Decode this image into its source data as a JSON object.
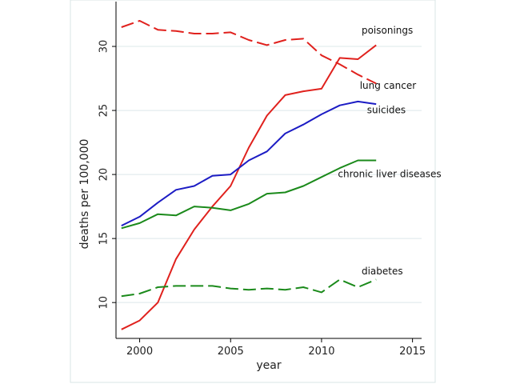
{
  "chart_data": {
    "type": "line",
    "title": "",
    "xlabel": "year",
    "ylabel": "deaths per 100,000",
    "xlim": [
      1998.7,
      2015.5
    ],
    "ylim": [
      7.2,
      33.5
    ],
    "xticks": [
      2000,
      2005,
      2010,
      2015
    ],
    "yticks": [
      10,
      15,
      20,
      25,
      30
    ],
    "grid": true,
    "legend": "none",
    "series": [
      {
        "name": "poisonings",
        "color": "#e0211d",
        "dash": "solid",
        "x": [
          1999,
          2000,
          2001,
          2002,
          2003,
          2004,
          2005,
          2006,
          2007,
          2008,
          2009,
          2010,
          2011,
          2012,
          2013
        ],
        "y": [
          7.9,
          8.6,
          10.0,
          13.4,
          15.7,
          17.5,
          19.1,
          22.1,
          24.6,
          26.2,
          26.5,
          26.7,
          29.1,
          29.0,
          30.1
        ]
      },
      {
        "name": "lung cancer",
        "color": "#e0211d",
        "dash": "dashed",
        "x": [
          1999,
          2000,
          2001,
          2002,
          2003,
          2004,
          2005,
          2006,
          2007,
          2008,
          2009,
          2010,
          2011,
          2012,
          2013
        ],
        "y": [
          31.5,
          32.0,
          31.3,
          31.2,
          31.0,
          31.0,
          31.1,
          30.5,
          30.1,
          30.5,
          30.6,
          29.3,
          28.6,
          27.8,
          27.1
        ]
      },
      {
        "name": "suicides",
        "color": "#1c1cc4",
        "dash": "solid",
        "x": [
          1999,
          2000,
          2001,
          2002,
          2003,
          2004,
          2005,
          2006,
          2007,
          2008,
          2009,
          2010,
          2011,
          2012,
          2013
        ],
        "y": [
          16.0,
          16.7,
          17.8,
          18.8,
          19.1,
          19.9,
          20.0,
          21.1,
          21.8,
          23.2,
          23.9,
          24.7,
          25.4,
          25.7,
          25.5
        ]
      },
      {
        "name": "chronic liver diseases",
        "color": "#1b8a1b",
        "dash": "solid",
        "x": [
          1999,
          2000,
          2001,
          2002,
          2003,
          2004,
          2005,
          2006,
          2007,
          2008,
          2009,
          2010,
          2011,
          2012,
          2013
        ],
        "y": [
          15.8,
          16.2,
          16.9,
          16.8,
          17.5,
          17.4,
          17.2,
          17.7,
          18.5,
          18.6,
          19.1,
          19.8,
          20.5,
          21.1,
          21.1
        ]
      },
      {
        "name": "diabetes",
        "color": "#1b8a1b",
        "dash": "dashed",
        "x": [
          1999,
          2000,
          2001,
          2002,
          2003,
          2004,
          2005,
          2006,
          2007,
          2008,
          2009,
          2010,
          2011,
          2012,
          2013
        ],
        "y": [
          10.5,
          10.7,
          11.2,
          11.3,
          11.3,
          11.3,
          11.1,
          11.0,
          11.1,
          11.0,
          11.2,
          10.8,
          11.8,
          11.2,
          11.8
        ]
      }
    ],
    "annotations": [
      {
        "text": "poisonings",
        "series": "poisonings",
        "x": 2012.2,
        "y": 31.0
      },
      {
        "text": "lung cancer",
        "series": "lung cancer",
        "x": 2012.1,
        "y": 26.7
      },
      {
        "text": "suicides",
        "series": "suicides",
        "x": 2012.5,
        "y": 24.8
      },
      {
        "text": "chronic liver diseases",
        "series": "chronic liver diseases",
        "x": 2010.9,
        "y": 19.8
      },
      {
        "text": "diabetes",
        "series": "diabetes",
        "x": 2012.2,
        "y": 12.2
      }
    ]
  }
}
